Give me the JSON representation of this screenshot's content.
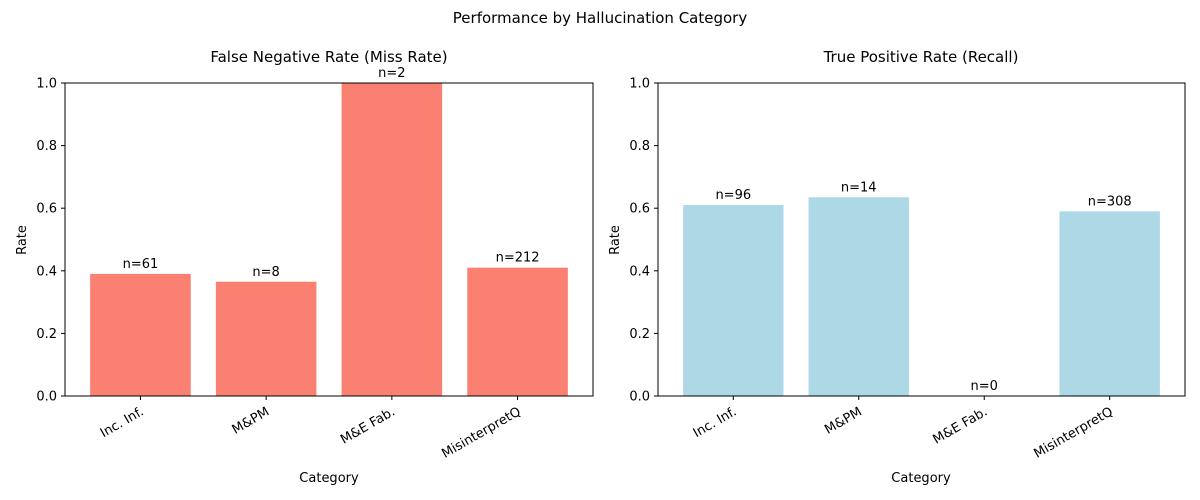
{
  "figure_title": "Performance by Hallucination Category",
  "chart_data": [
    {
      "type": "bar",
      "title": "False Negative Rate (Miss Rate)",
      "xlabel": "Category",
      "ylabel": "Rate",
      "ylim": [
        0,
        1.0
      ],
      "yticks": [
        "0.0",
        "0.2",
        "0.4",
        "0.6",
        "0.8",
        "1.0"
      ],
      "categories": [
        "Inc. Inf.",
        "M&PM",
        "M&E Fab.",
        "MisinterpretQ"
      ],
      "values": [
        0.39,
        0.365,
        1.0,
        0.41
      ],
      "annotations": [
        "n=61",
        "n=8",
        "n=2",
        "n=212"
      ],
      "bar_color": "#fa8072",
      "grid": false
    },
    {
      "type": "bar",
      "title": "True Positive Rate (Recall)",
      "xlabel": "Category",
      "ylabel": "Rate",
      "ylim": [
        0,
        1.0
      ],
      "yticks": [
        "0.0",
        "0.2",
        "0.4",
        "0.6",
        "0.8",
        "1.0"
      ],
      "categories": [
        "Inc. Inf.",
        "M&PM",
        "M&E Fab.",
        "MisinterpretQ"
      ],
      "values": [
        0.61,
        0.635,
        0.0,
        0.59
      ],
      "annotations": [
        "n=96",
        "n=14",
        "n=0",
        "n=308"
      ],
      "bar_color": "#add8e6",
      "grid": false
    }
  ]
}
